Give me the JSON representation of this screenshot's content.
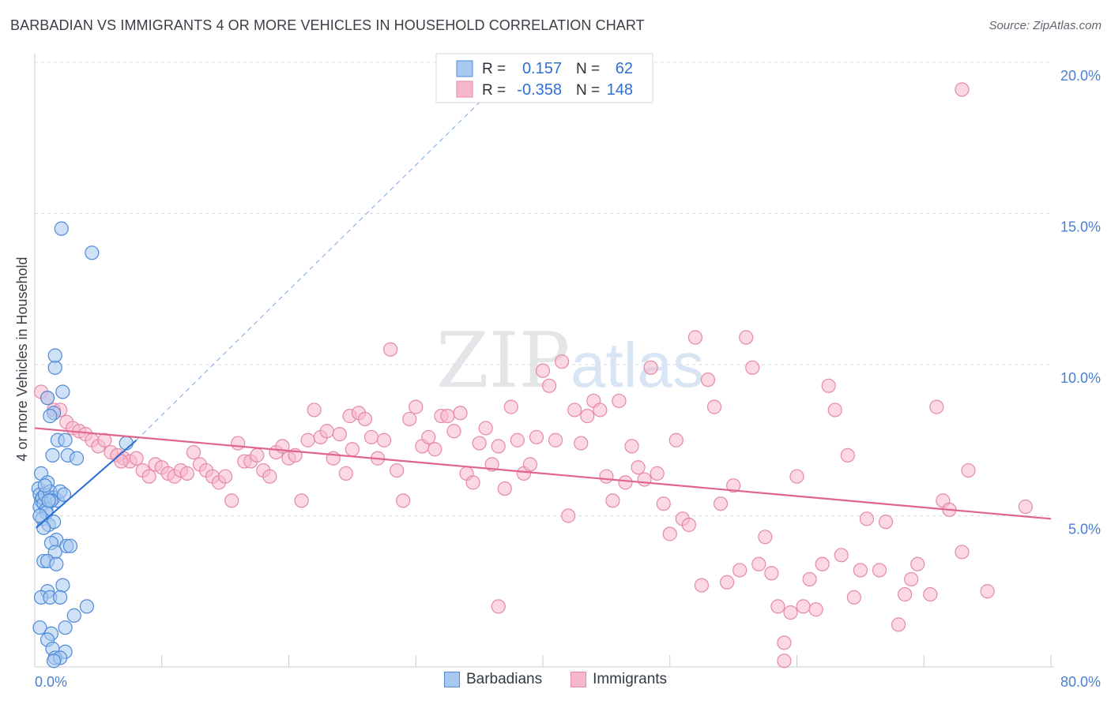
{
  "header": {
    "title": "BARBADIAN VS IMMIGRANTS 4 OR MORE VEHICLES IN HOUSEHOLD CORRELATION CHART",
    "source": "Source: ZipAtlas.com"
  },
  "watermark": {
    "zip": "ZIP",
    "atlas": "atlas"
  },
  "colors": {
    "barbadian_fill": "#a8c8f0",
    "barbadian_stroke": "#4f8ad8",
    "barbadian_line": "#2a6fd4",
    "immigrant_fill": "#f7b8cb",
    "immigrant_stroke": "#e48aa6",
    "immigrant_line": "#e0648e",
    "axis_label": "#4a7fd0"
  },
  "legend": {
    "rows": [
      {
        "r_label": "R =",
        "r_value": "0.157",
        "n_label": "N =",
        "n_value": "62"
      },
      {
        "r_label": "R =",
        "r_value": "-0.358",
        "n_label": "N =",
        "n_value": "148"
      }
    ]
  },
  "bottom_legend": {
    "barbadians": "Barbadians",
    "immigrants": "Immigrants"
  },
  "chart_data": {
    "type": "scatter",
    "title": "BARBADIAN VS IMMIGRANTS 4 OR MORE VEHICLES IN HOUSEHOLD CORRELATION CHART",
    "xlabel": "",
    "ylabel": "4 or more Vehicles in Household",
    "xlim": [
      0,
      80
    ],
    "ylim": [
      0,
      20
    ],
    "x_tick_labels": [
      "0.0%",
      "80.0%"
    ],
    "y_ticks": [
      5,
      10,
      15,
      20
    ],
    "y_tick_labels": [
      "5.0%",
      "10.0%",
      "15.0%",
      "20.0%"
    ],
    "series": [
      {
        "name": "Barbadians",
        "r": 0.157,
        "n": 62,
        "trend": {
          "x": [
            0.1,
            8.0
          ],
          "y": [
            4.6,
            7.5
          ],
          "dashed_to": [
            37.0,
            19.5
          ]
        },
        "points": [
          [
            0.3,
            5.9
          ],
          [
            0.4,
            5.7
          ],
          [
            0.5,
            5.5
          ],
          [
            0.4,
            5.3
          ],
          [
            0.6,
            5.6
          ],
          [
            0.7,
            5.4
          ],
          [
            0.8,
            5.7
          ],
          [
            0.9,
            5.2
          ],
          [
            0.5,
            6.4
          ],
          [
            1.0,
            6.1
          ],
          [
            1.2,
            5.8
          ],
          [
            1.5,
            5.6
          ],
          [
            1.8,
            5.5
          ],
          [
            2.0,
            5.8
          ],
          [
            1.3,
            5.5
          ],
          [
            0.9,
            5.1
          ],
          [
            0.6,
            4.9
          ],
          [
            1.1,
            4.7
          ],
          [
            1.5,
            4.8
          ],
          [
            0.7,
            4.6
          ],
          [
            1.7,
            4.2
          ],
          [
            2.5,
            4.0
          ],
          [
            1.3,
            4.1
          ],
          [
            1.6,
            3.8
          ],
          [
            2.8,
            4.0
          ],
          [
            0.7,
            3.5
          ],
          [
            1.0,
            3.5
          ],
          [
            1.7,
            3.4
          ],
          [
            2.2,
            2.7
          ],
          [
            1.0,
            2.5
          ],
          [
            0.5,
            2.3
          ],
          [
            1.2,
            2.3
          ],
          [
            2.0,
            2.3
          ],
          [
            4.1,
            2.0
          ],
          [
            3.1,
            1.7
          ],
          [
            2.4,
            1.3
          ],
          [
            0.4,
            1.3
          ],
          [
            1.3,
            1.1
          ],
          [
            1.0,
            0.9
          ],
          [
            1.4,
            0.6
          ],
          [
            2.4,
            0.5
          ],
          [
            1.6,
            0.3
          ],
          [
            2.0,
            0.3
          ],
          [
            1.5,
            0.2
          ],
          [
            1.0,
            8.9
          ],
          [
            1.5,
            8.4
          ],
          [
            1.2,
            8.3
          ],
          [
            2.2,
            9.1
          ],
          [
            1.6,
            9.9
          ],
          [
            1.6,
            10.3
          ],
          [
            1.8,
            7.5
          ],
          [
            2.4,
            7.5
          ],
          [
            1.4,
            7.0
          ],
          [
            2.6,
            7.0
          ],
          [
            3.3,
            6.9
          ],
          [
            7.2,
            7.4
          ],
          [
            2.1,
            14.5
          ],
          [
            4.5,
            13.7
          ],
          [
            1.1,
            5.5
          ],
          [
            0.8,
            6.0
          ],
          [
            2.3,
            5.7
          ],
          [
            0.4,
            5.0
          ]
        ]
      },
      {
        "name": "Immigrants",
        "r": -0.358,
        "n": 148,
        "trend": {
          "x": [
            0.0,
            80.0
          ],
          "y": [
            7.9,
            4.9
          ]
        },
        "points": [
          [
            0.5,
            9.1
          ],
          [
            1.0,
            8.9
          ],
          [
            1.5,
            8.5
          ],
          [
            2.0,
            8.5
          ],
          [
            2.5,
            8.1
          ],
          [
            3.0,
            7.9
          ],
          [
            3.5,
            7.8
          ],
          [
            4.0,
            7.7
          ],
          [
            4.5,
            7.5
          ],
          [
            5.0,
            7.3
          ],
          [
            5.5,
            7.5
          ],
          [
            6.0,
            7.1
          ],
          [
            6.5,
            7.0
          ],
          [
            7.0,
            6.9
          ],
          [
            7.5,
            6.8
          ],
          [
            8.0,
            6.9
          ],
          [
            6.8,
            6.8
          ],
          [
            8.5,
            6.5
          ],
          [
            9.0,
            6.3
          ],
          [
            9.5,
            6.7
          ],
          [
            10.0,
            6.6
          ],
          [
            10.5,
            6.4
          ],
          [
            11.0,
            6.3
          ],
          [
            11.5,
            6.5
          ],
          [
            12.0,
            6.4
          ],
          [
            12.5,
            7.1
          ],
          [
            13.0,
            6.7
          ],
          [
            13.5,
            6.5
          ],
          [
            14.0,
            6.3
          ],
          [
            14.5,
            6.1
          ],
          [
            15.0,
            6.3
          ],
          [
            15.5,
            5.5
          ],
          [
            16.0,
            7.4
          ],
          [
            16.5,
            6.8
          ],
          [
            17.0,
            6.8
          ],
          [
            17.5,
            7.0
          ],
          [
            18.0,
            6.5
          ],
          [
            18.5,
            6.3
          ],
          [
            19.0,
            7.1
          ],
          [
            19.5,
            7.3
          ],
          [
            20.0,
            6.9
          ],
          [
            20.5,
            7.0
          ],
          [
            21.0,
            5.5
          ],
          [
            21.5,
            7.5
          ],
          [
            22.0,
            8.5
          ],
          [
            22.5,
            7.6
          ],
          [
            23.0,
            7.8
          ],
          [
            23.5,
            6.9
          ],
          [
            24.0,
            7.7
          ],
          [
            24.5,
            6.4
          ],
          [
            25.0,
            7.2
          ],
          [
            24.8,
            8.3
          ],
          [
            25.5,
            8.4
          ],
          [
            26.0,
            8.2
          ],
          [
            26.5,
            7.6
          ],
          [
            27.0,
            6.9
          ],
          [
            27.5,
            7.5
          ],
          [
            28.0,
            10.5
          ],
          [
            28.5,
            6.5
          ],
          [
            29.0,
            5.5
          ],
          [
            29.5,
            8.2
          ],
          [
            30.0,
            8.6
          ],
          [
            30.5,
            7.3
          ],
          [
            31.0,
            7.6
          ],
          [
            31.5,
            7.2
          ],
          [
            32.0,
            8.3
          ],
          [
            32.5,
            8.3
          ],
          [
            33.0,
            7.8
          ],
          [
            33.5,
            8.4
          ],
          [
            34.0,
            6.4
          ],
          [
            34.5,
            6.1
          ],
          [
            35.0,
            7.4
          ],
          [
            35.5,
            7.9
          ],
          [
            36.0,
            6.7
          ],
          [
            36.5,
            7.3
          ],
          [
            37.0,
            5.9
          ],
          [
            37.5,
            8.6
          ],
          [
            38.0,
            7.5
          ],
          [
            38.5,
            6.4
          ],
          [
            39.0,
            6.7
          ],
          [
            39.5,
            7.6
          ],
          [
            40.0,
            9.8
          ],
          [
            40.5,
            9.3
          ],
          [
            41.0,
            7.5
          ],
          [
            41.5,
            10.1
          ],
          [
            42.0,
            5.0
          ],
          [
            42.5,
            8.5
          ],
          [
            43.0,
            7.4
          ],
          [
            43.5,
            8.3
          ],
          [
            44.0,
            8.8
          ],
          [
            44.5,
            8.5
          ],
          [
            45.0,
            6.3
          ],
          [
            45.5,
            5.5
          ],
          [
            46.0,
            8.8
          ],
          [
            46.5,
            6.1
          ],
          [
            47.0,
            7.3
          ],
          [
            47.5,
            6.6
          ],
          [
            48.0,
            6.2
          ],
          [
            48.5,
            9.9
          ],
          [
            49.0,
            6.4
          ],
          [
            49.5,
            5.4
          ],
          [
            50.0,
            4.4
          ],
          [
            50.5,
            7.5
          ],
          [
            51.0,
            4.9
          ],
          [
            51.5,
            4.7
          ],
          [
            52.0,
            10.9
          ],
          [
            52.5,
            2.7
          ],
          [
            53.0,
            9.5
          ],
          [
            53.5,
            8.6
          ],
          [
            54.0,
            5.4
          ],
          [
            54.5,
            2.8
          ],
          [
            55.0,
            6.0
          ],
          [
            55.5,
            3.2
          ],
          [
            56.0,
            10.9
          ],
          [
            56.5,
            9.9
          ],
          [
            57.0,
            3.4
          ],
          [
            57.5,
            4.3
          ],
          [
            58.0,
            3.1
          ],
          [
            58.5,
            2.0
          ],
          [
            59.0,
            0.8
          ],
          [
            59.5,
            1.8
          ],
          [
            60.0,
            6.3
          ],
          [
            60.5,
            2.0
          ],
          [
            61.0,
            2.9
          ],
          [
            61.5,
            1.9
          ],
          [
            62.0,
            3.4
          ],
          [
            62.5,
            9.3
          ],
          [
            63.0,
            8.5
          ],
          [
            63.5,
            3.7
          ],
          [
            64.0,
            7.0
          ],
          [
            64.5,
            2.3
          ],
          [
            65.0,
            3.2
          ],
          [
            65.5,
            4.9
          ],
          [
            66.5,
            3.2
          ],
          [
            67.0,
            4.8
          ],
          [
            68.0,
            1.4
          ],
          [
            68.5,
            2.4
          ],
          [
            69.0,
            2.9
          ],
          [
            69.5,
            3.4
          ],
          [
            70.5,
            2.4
          ],
          [
            71.0,
            8.6
          ],
          [
            71.5,
            5.5
          ],
          [
            72.0,
            5.2
          ],
          [
            73.0,
            3.8
          ],
          [
            73.5,
            6.5
          ],
          [
            75.0,
            2.5
          ],
          [
            78.0,
            5.3
          ],
          [
            73.0,
            19.1
          ],
          [
            36.5,
            2.0
          ],
          [
            59.0,
            0.2
          ]
        ]
      }
    ]
  }
}
